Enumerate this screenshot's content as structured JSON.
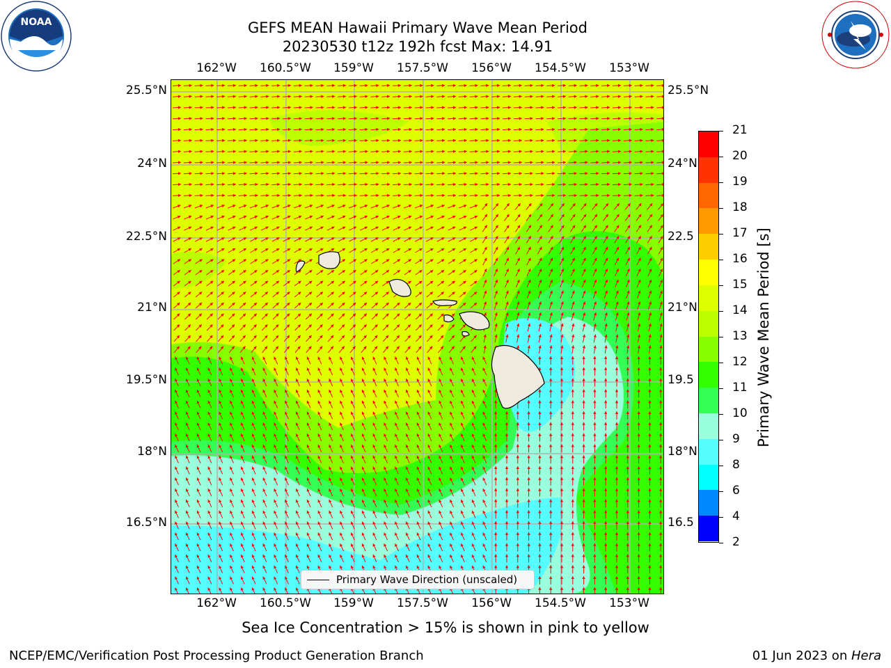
{
  "title": {
    "line1": "GEFS MEAN Hawaii Primary Wave Mean Period",
    "line2": "20230530 t12z 192h fcst   Max: 14.91"
  },
  "logos": {
    "noaa": {
      "text": "NOAA",
      "ring_text": "NATIONAL OCEANIC AND ATMOSPHERIC ADMINISTRATION · U.S. DEPARTMENT OF COMMERCE",
      "icon": "noaa-logo-icon"
    },
    "nws": {
      "ring_text": "NATIONAL WEATHER SERVICE",
      "icon": "nws-logo-icon"
    }
  },
  "axes": {
    "lon_ticks": [
      "162°W",
      "160.5°W",
      "159°W",
      "157.5°W",
      "156°W",
      "154.5°W",
      "153°W"
    ],
    "lat_ticks": [
      "25.5°N",
      "24°N",
      "22.5°N",
      "21°N",
      "19.5°N",
      "18°N",
      "16.5°N"
    ],
    "right_lat_ticks": [
      "25.5°N",
      "24°N",
      "22.5",
      "21°N",
      "19.5",
      "18°N",
      "16.5"
    ]
  },
  "legend": {
    "label": "Primary Wave Direction (unscaled)"
  },
  "colorbar": {
    "label": "Primary Wave Mean Period [s]",
    "ticks": [
      "21",
      "20",
      "19",
      "18",
      "17",
      "16",
      "15",
      "14",
      "13",
      "12",
      "11",
      "10",
      "9",
      "8",
      "6",
      "4",
      "2"
    ],
    "colors": [
      "#ff0000",
      "#ff3300",
      "#ff6600",
      "#ff9900",
      "#ffcc00",
      "#ffff00",
      "#ddff00",
      "#bbff00",
      "#88ff00",
      "#33ff00",
      "#33ff55",
      "#99ffdd",
      "#55ffff",
      "#00ffff",
      "#0088ff",
      "#0000ff"
    ]
  },
  "field_colors": {
    "c14": "#ddff00",
    "c13": "#bbff00",
    "c12": "#88ff00",
    "c11": "#33ff00",
    "c10": "#33ff55",
    "c9": "#99ffdd",
    "c8": "#55ffff",
    "land": "#efebdf",
    "arrow": "#ff0000"
  },
  "islands": [
    "Kauai",
    "Niihau",
    "Oahu",
    "Molokai",
    "Lanai",
    "Maui",
    "Kahoolawe",
    "Hawaii"
  ],
  "note": "Sea Ice Concentration > 15% is shown in pink to yellow",
  "footer": {
    "left": "NCEP/EMC/Verification Post Processing Product Generation Branch",
    "date": "01 Jun 2023 on ",
    "machine": "Hera"
  }
}
